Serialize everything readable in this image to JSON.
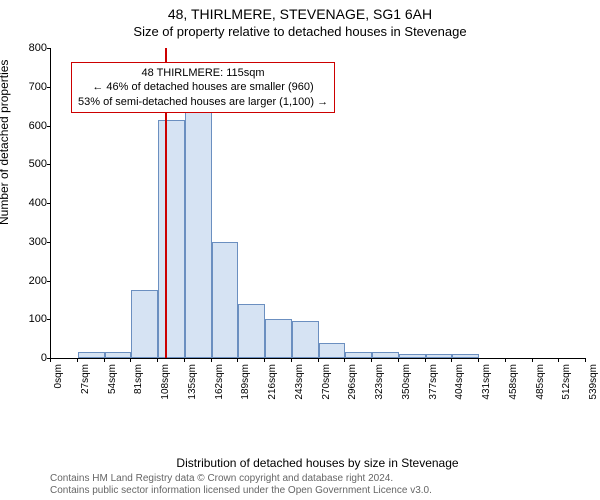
{
  "title": "48, THIRLMERE, STEVENAGE, SG1 6AH",
  "subtitle": "Size of property relative to detached houses in Stevenage",
  "y_axis_label": "Number of detached properties",
  "x_axis_label": "Distribution of detached houses by size in Stevenage",
  "attribution_line1": "Contains HM Land Registry data © Crown copyright and database right 2024.",
  "attribution_line2": "Contains public sector information licensed under the Open Government Licence v3.0.",
  "chart": {
    "type": "histogram",
    "y_min": 0,
    "y_max": 800,
    "y_tick_step": 100,
    "x_tick_labels": [
      "0sqm",
      "27sqm",
      "54sqm",
      "81sqm",
      "108sqm",
      "135sqm",
      "162sqm",
      "189sqm",
      "216sqm",
      "243sqm",
      "270sqm",
      "296sqm",
      "323sqm",
      "350sqm",
      "377sqm",
      "404sqm",
      "431sqm",
      "458sqm",
      "485sqm",
      "512sqm",
      "539sqm"
    ],
    "bar_values": [
      0,
      15,
      15,
      175,
      615,
      660,
      300,
      140,
      100,
      95,
      40,
      15,
      15,
      10,
      10,
      10,
      0,
      0,
      0,
      0
    ],
    "bar_fill": "#d6e3f3",
    "bar_border": "#6b8fc0",
    "marker_value": 115,
    "marker_color": "#cc0000",
    "x_domain_max": 540,
    "background": "#ffffff"
  },
  "annotation": {
    "line1": "48 THIRLMERE: 115sqm",
    "line2": "← 46% of detached houses are smaller (960)",
    "line3": "53% of semi-detached houses are larger (1,100) →"
  }
}
